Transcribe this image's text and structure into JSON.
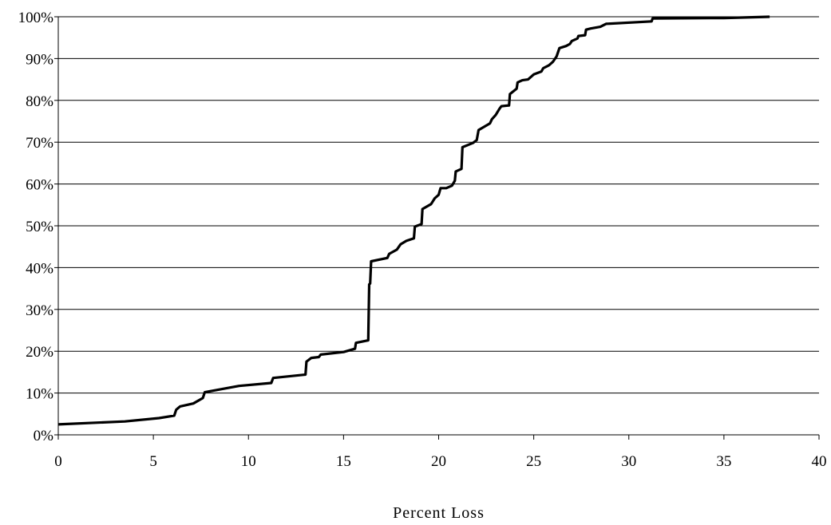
{
  "chart_data": {
    "type": "line",
    "title": "",
    "xlabel": "Percent Loss",
    "ylabel": "",
    "xlim": [
      0,
      40
    ],
    "ylim": [
      0,
      100
    ],
    "x_ticks": [
      0,
      5,
      10,
      15,
      20,
      25,
      30,
      35,
      40
    ],
    "x_tick_labels": [
      "0",
      "5",
      "10",
      "15",
      "20",
      "25",
      "30",
      "35",
      "40"
    ],
    "y_ticks": [
      0,
      10,
      20,
      30,
      40,
      50,
      60,
      70,
      80,
      90,
      100
    ],
    "y_tick_labels": [
      "0%",
      "10%",
      "20%",
      "30%",
      "40%",
      "50%",
      "60%",
      "70%",
      "80%",
      "90%",
      "100%"
    ],
    "grid": "horizontal",
    "legend": "none",
    "line_color": "#000000",
    "series": [
      {
        "points": [
          [
            0,
            2.5
          ],
          [
            3.5,
            3.2
          ],
          [
            5.3,
            4.0
          ],
          [
            6.1,
            4.6
          ],
          [
            6.2,
            6.0
          ],
          [
            6.4,
            6.8
          ],
          [
            7.1,
            7.5
          ],
          [
            7.6,
            8.8
          ],
          [
            7.7,
            10.2
          ],
          [
            9.5,
            11.7
          ],
          [
            11.2,
            12.4
          ],
          [
            11.3,
            13.6
          ],
          [
            13.0,
            14.4
          ],
          [
            13.05,
            17.5
          ],
          [
            13.3,
            18.4
          ],
          [
            13.7,
            18.6
          ],
          [
            13.8,
            19.2
          ],
          [
            15.0,
            19.8
          ],
          [
            15.6,
            20.6
          ],
          [
            15.65,
            22.0
          ],
          [
            16.3,
            22.6
          ],
          [
            16.35,
            36.0
          ],
          [
            16.4,
            36.2
          ],
          [
            16.45,
            41.5
          ],
          [
            17.3,
            42.3
          ],
          [
            17.4,
            43.3
          ],
          [
            17.8,
            44.3
          ],
          [
            18.0,
            45.6
          ],
          [
            18.3,
            46.4
          ],
          [
            18.7,
            47.0
          ],
          [
            18.75,
            49.8
          ],
          [
            19.1,
            50.4
          ],
          [
            19.15,
            54.0
          ],
          [
            19.6,
            55.2
          ],
          [
            19.8,
            56.6
          ],
          [
            20.0,
            57.4
          ],
          [
            20.1,
            59.0
          ],
          [
            20.4,
            59.0
          ],
          [
            20.7,
            59.6
          ],
          [
            20.85,
            60.8
          ],
          [
            20.9,
            63.0
          ],
          [
            21.2,
            63.6
          ],
          [
            21.25,
            68.8
          ],
          [
            21.8,
            69.8
          ],
          [
            22.0,
            70.5
          ],
          [
            22.1,
            72.9
          ],
          [
            22.7,
            74.5
          ],
          [
            22.8,
            75.5
          ],
          [
            23.0,
            76.5
          ],
          [
            23.2,
            78.0
          ],
          [
            23.3,
            78.6
          ],
          [
            23.7,
            78.8
          ],
          [
            23.75,
            81.5
          ],
          [
            24.1,
            82.8
          ],
          [
            24.15,
            84.3
          ],
          [
            24.4,
            84.8
          ],
          [
            24.7,
            85.0
          ],
          [
            25.0,
            86.2
          ],
          [
            25.4,
            86.9
          ],
          [
            25.5,
            87.7
          ],
          [
            25.8,
            88.4
          ],
          [
            26.0,
            89.2
          ],
          [
            26.2,
            90.5
          ],
          [
            26.35,
            92.5
          ],
          [
            26.7,
            93.0
          ],
          [
            26.9,
            93.5
          ],
          [
            27.0,
            94.2
          ],
          [
            27.3,
            94.8
          ],
          [
            27.35,
            95.4
          ],
          [
            27.7,
            95.6
          ],
          [
            27.75,
            96.9
          ],
          [
            28.0,
            97.2
          ],
          [
            28.5,
            97.6
          ],
          [
            28.8,
            98.3
          ],
          [
            31.2,
            98.9
          ],
          [
            31.25,
            99.6
          ],
          [
            35.0,
            99.7
          ],
          [
            37.4,
            100
          ]
        ]
      }
    ]
  }
}
